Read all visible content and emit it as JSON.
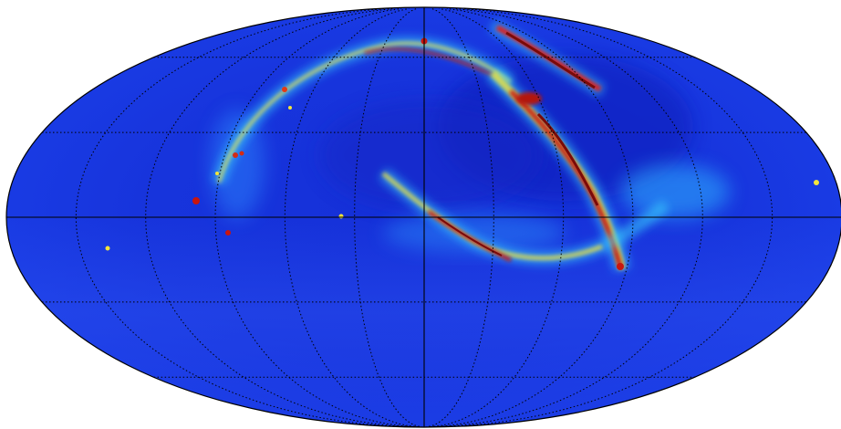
{
  "map": {
    "projection": "mollweide",
    "colormap": "jet",
    "background_color": "#1a2ed6",
    "graticule": {
      "meridians_deg": [
        -150,
        -120,
        -90,
        -60,
        -30,
        30,
        60,
        90,
        120,
        150
      ],
      "parallels_deg": [
        -60,
        -30,
        30,
        60
      ],
      "style": "dotted",
      "color": "#000000"
    },
    "center_lines": {
      "equator": true,
      "central_meridian": true,
      "style": "solid",
      "color": "#000000"
    },
    "colors": {
      "low": "#1f37e0",
      "mid": "#35c8ff",
      "high_yellow": "#f4e53a",
      "high_red": "#c8150f",
      "peak": "#7a0a08"
    }
  }
}
